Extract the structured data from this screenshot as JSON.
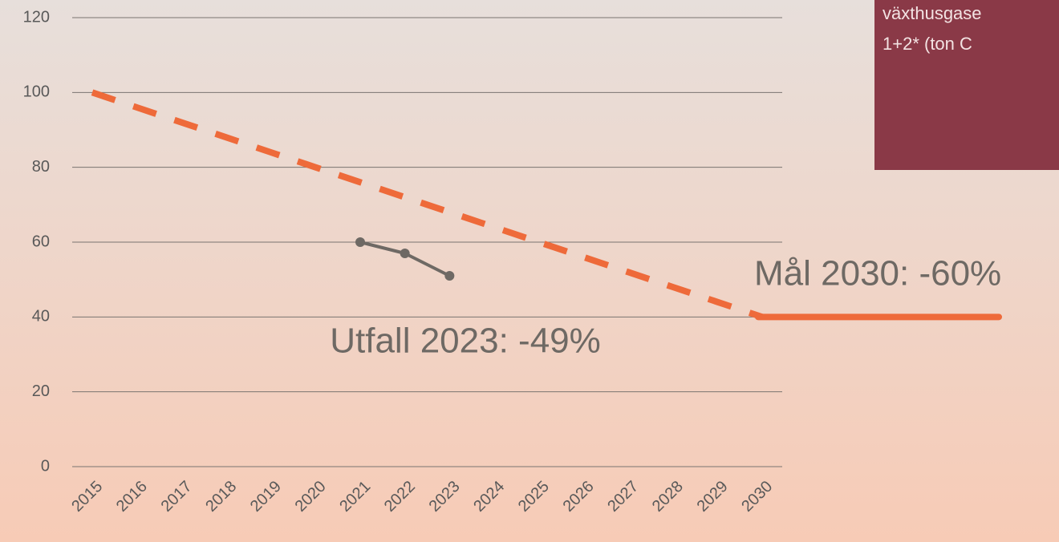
{
  "chart_data": {
    "type": "line",
    "x": [
      2015,
      2016,
      2017,
      2018,
      2019,
      2020,
      2021,
      2022,
      2023,
      2024,
      2025,
      2026,
      2027,
      2028,
      2029,
      2030
    ],
    "series": [
      {
        "color": "#ee6a3a",
        "style": "dashed",
        "values": [
          100,
          96,
          92,
          88,
          84,
          80,
          76,
          72,
          68,
          64,
          60,
          56,
          52,
          48,
          44,
          40
        ]
      },
      {
        "color": "#6e6964",
        "style": "solid",
        "markers": true,
        "values": [
          null,
          null,
          null,
          null,
          null,
          null,
          60,
          57,
          51,
          null,
          null,
          null,
          null,
          null,
          null,
          null
        ]
      }
    ],
    "xlim": [
      2015,
      2030
    ],
    "ylim": [
      0,
      120
    ],
    "yticks": [
      0,
      20,
      40,
      60,
      80,
      100,
      120
    ],
    "grid": true,
    "annotations": [
      "Utfall 2023: -49%",
      "Mål 2030: -60%"
    ],
    "box_lines": [
      "växthusgase",
      "1+2*  (ton C"
    ]
  }
}
